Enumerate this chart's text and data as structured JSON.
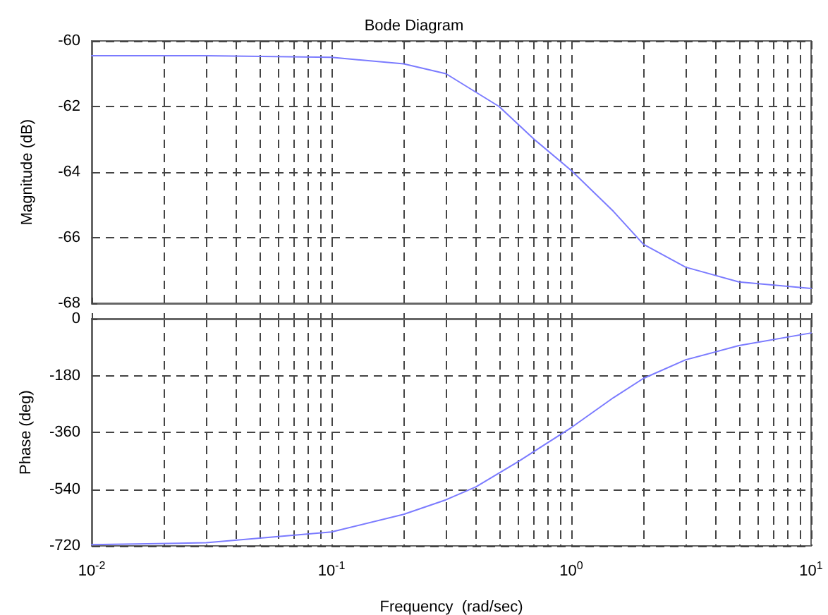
{
  "chart_data": [
    {
      "type": "line",
      "title": "Bode Diagram",
      "ylabel": "Magnitude (dB)",
      "log": "x",
      "grid": true,
      "line_style": "solid",
      "marker": "none",
      "tick_labels": "y",
      "xlim": [
        0.01,
        10
      ],
      "xticks": [
        {
          "value": 0.01,
          "label": null
        },
        {
          "value": 0.1,
          "label": null
        },
        {
          "value": 1,
          "label": null
        },
        {
          "value": 10,
          "label": null
        }
      ],
      "ylim": [
        -68,
        -60
      ],
      "yticks": [
        -68,
        -66,
        -64,
        -62,
        -60
      ],
      "x": [
        0.01,
        0.03,
        0.1,
        0.2,
        0.3,
        0.5,
        0.7,
        1,
        1.5,
        2,
        3,
        5,
        10
      ],
      "series": [
        {
          "color": "#7b7bff",
          "values": [
            -60.45,
            -60.45,
            -60.5,
            -60.7,
            -61.0,
            -62.0,
            -63.0,
            -63.95,
            -65.2,
            -66.2,
            -66.9,
            -67.35,
            -67.55
          ]
        }
      ]
    },
    {
      "type": "line",
      "xlabel": "Frequency  (rad/sec)",
      "ylabel": "Phase (deg)",
      "log": "x",
      "grid": true,
      "line_style": "solid",
      "marker": "none",
      "xlim": [
        0.01,
        10
      ],
      "xticks": [
        {
          "value": 0.01,
          "label": "10$^{-2}$"
        },
        {
          "value": 0.1,
          "label": "10$^{-1}$"
        },
        {
          "value": 1,
          "label": "10$^{0}$"
        },
        {
          "value": 10,
          "label": "10$^{1}$"
        }
      ],
      "ylim": [
        -720,
        0
      ],
      "yticks": [
        -720,
        -540,
        -360,
        -180,
        0
      ],
      "x": [
        0.01,
        0.03,
        0.1,
        0.2,
        0.3,
        0.4,
        0.6,
        1,
        1.5,
        2,
        3,
        5,
        10
      ],
      "series": [
        {
          "color": "#7b7bff",
          "values": [
            -716,
            -710,
            -676,
            -620,
            -574,
            -533,
            -453,
            -345,
            -250,
            -189,
            -130,
            -85,
            -45
          ]
        }
      ]
    }
  ]
}
